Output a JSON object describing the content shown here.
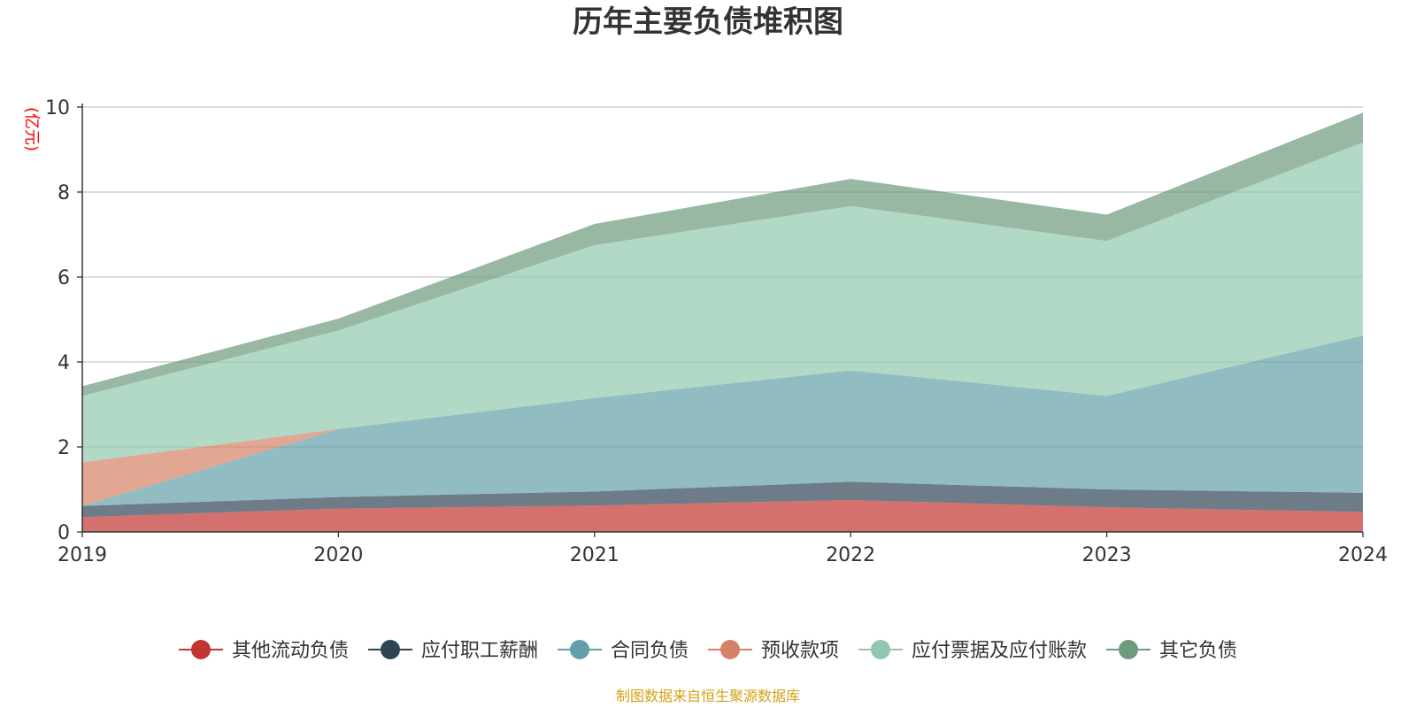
{
  "chart_data": {
    "type": "area",
    "title": "历年主要负债堆积图",
    "ylabel": "(亿元)",
    "xlabel": "",
    "ylim": [
      0,
      10
    ],
    "y_ticks": [
      0,
      2,
      4,
      6,
      8,
      10
    ],
    "x": [
      "2019",
      "2020",
      "2021",
      "2022",
      "2023",
      "2024"
    ],
    "stacked": true,
    "grid": true,
    "legend_position": "bottom",
    "series": [
      {
        "name": "其他流动负债",
        "color": "#c23531",
        "values": [
          0.35,
          0.55,
          0.62,
          0.75,
          0.58,
          0.47
        ]
      },
      {
        "name": "应付职工薪酬",
        "color": "#2f4554",
        "values": [
          0.26,
          0.27,
          0.33,
          0.43,
          0.42,
          0.45
        ]
      },
      {
        "name": "合同负债",
        "color": "#61a0a8",
        "values": [
          0.0,
          1.6,
          2.2,
          2.62,
          2.2,
          3.7
        ]
      },
      {
        "name": "预收款项",
        "color": "#d48265",
        "values": [
          1.03,
          0.0,
          0.0,
          0.0,
          0.0,
          0.0
        ]
      },
      {
        "name": "应付票据及应付账款",
        "color": "#91c7ae",
        "values": [
          1.56,
          2.32,
          3.6,
          3.87,
          3.65,
          4.55
        ]
      },
      {
        "name": "其它负债",
        "color": "#6e9a7e",
        "values": [
          0.23,
          0.28,
          0.5,
          0.64,
          0.62,
          0.7
        ]
      }
    ],
    "source_note": "制图数据来自恒生聚源数据库"
  }
}
